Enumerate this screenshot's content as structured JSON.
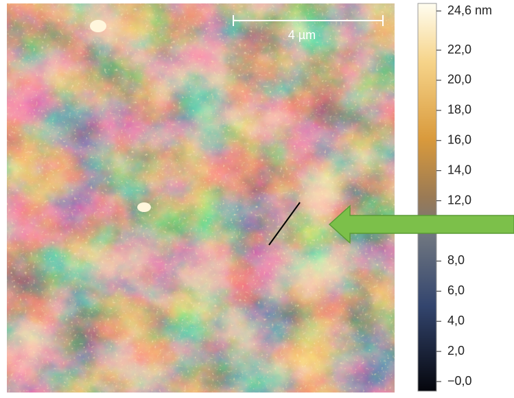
{
  "image": {
    "scale_bar": "4 µm"
  },
  "colorbar": {
    "lim": [
      0,
      24.6
    ],
    "ticks": [
      {
        "value": 24.6,
        "label": "24,6 nm"
      },
      {
        "value": 22,
        "label": "22,0"
      },
      {
        "value": 20,
        "label": "20,0"
      },
      {
        "value": 18,
        "label": "18,0"
      },
      {
        "value": 16,
        "label": "16,0"
      },
      {
        "value": 14,
        "label": "14,0"
      },
      {
        "value": 12,
        "label": "12,0"
      },
      {
        "value": 8,
        "label": "8,0"
      },
      {
        "value": 6,
        "label": "6,0"
      },
      {
        "value": 4,
        "label": "4,0"
      },
      {
        "value": 2,
        "label": "2,0"
      },
      {
        "value": 0,
        "label": "−0,0"
      }
    ]
  }
}
